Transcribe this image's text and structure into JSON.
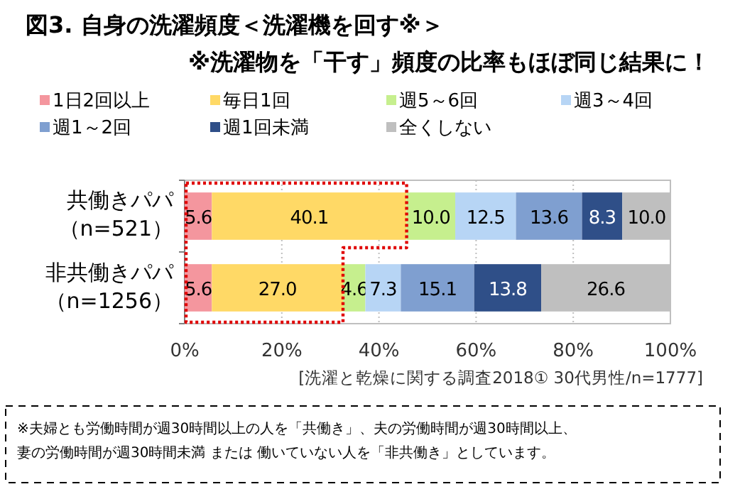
{
  "chart_data": {
    "type": "bar",
    "orientation": "horizontal",
    "stacked": true,
    "title": "図3.  自身の洗濯頻度＜洗濯機を回す※＞",
    "subtitle": "※洗濯物を「干す」頻度の比率もほぼ同じ結果に！",
    "categories": [
      "共働きパパ（n=521）",
      "非共働きパパ（n=1256）"
    ],
    "series": [
      {
        "name": "1日2回以上",
        "color": "#f4969e",
        "values": [
          5.6,
          5.6
        ],
        "value_labels": [
          "5.6",
          "5.6"
        ]
      },
      {
        "name": "毎日1回",
        "color": "#ffd966",
        "values": [
          40.1,
          27.0
        ],
        "value_labels": [
          "40.1",
          "27.0"
        ]
      },
      {
        "name": "週5～6回",
        "color": "#c6ef8e",
        "values": [
          10.0,
          4.6
        ],
        "value_labels": [
          "10.0",
          "4.6"
        ]
      },
      {
        "name": "週3～4回",
        "color": "#b7d5f5",
        "values": [
          12.5,
          7.3
        ],
        "value_labels": [
          "12.5",
          "7.3"
        ]
      },
      {
        "name": "週1～2回",
        "color": "#7f9fd0",
        "values": [
          13.6,
          15.1
        ],
        "value_labels": [
          "13.6",
          "15.1"
        ]
      },
      {
        "name": "週1回未満",
        "color": "#2f4f88",
        "values": [
          8.3,
          13.8
        ],
        "value_labels": [
          "8.3",
          "13.8"
        ]
      },
      {
        "name": "全くしない",
        "color": "#bfbfbf",
        "values": [
          10.0,
          26.6
        ],
        "value_labels": [
          "10.0",
          "26.6"
        ]
      }
    ],
    "xlim": [
      0,
      100
    ],
    "xticks": [
      {
        "value": 0,
        "label": "0%"
      },
      {
        "value": 20,
        "label": "20%"
      },
      {
        "value": 40,
        "label": "40%"
      },
      {
        "value": 60,
        "label": "60%"
      },
      {
        "value": 80,
        "label": "80%"
      },
      {
        "value": 100,
        "label": "100%"
      }
    ],
    "grid": "x",
    "legend": "top",
    "annotations": [
      "[洗濯と乾燥に関する調査2018①  30代男性/n=1777]",
      "※夫婦とも労働時間が週30時間以上の人を「共働き」、夫の労働時間が週30時間以上、妻の労働時間が週30時間未満 または 働いていない人を「非共働き」としています。"
    ]
  }
}
